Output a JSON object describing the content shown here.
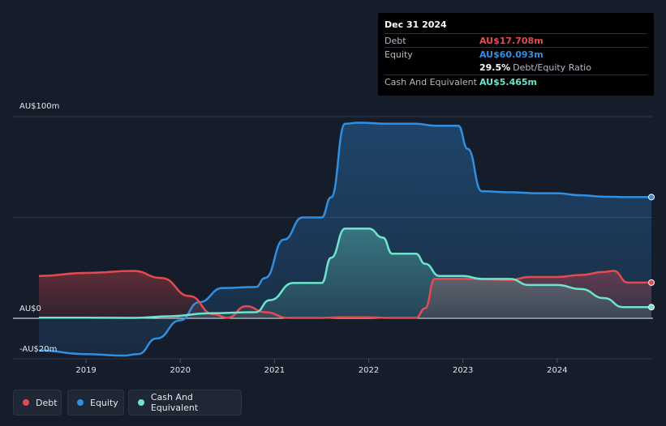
{
  "tooltip": {
    "date": "Dec 31 2024",
    "rows": [
      {
        "label": "Debt",
        "value": "AU$17.708m",
        "color": "#e64a4f"
      },
      {
        "label": "Equity",
        "value": "AU$60.093m",
        "color": "#2f8fe3"
      },
      {
        "label": "",
        "value": "29.5%",
        "extra": "Debt/Equity Ratio",
        "color": "#ffffff"
      },
      {
        "label": "Cash And Equivalent",
        "value": "AU$5.465m",
        "color": "#6ee3cd"
      }
    ]
  },
  "legend": [
    {
      "label": "Debt",
      "color": "#e64a4f"
    },
    {
      "label": "Equity",
      "color": "#2f8fe3"
    },
    {
      "label": "Cash And Equivalent",
      "color": "#6ee3cd"
    }
  ],
  "chart_data": {
    "type": "area",
    "y_tick_labels": [
      "AU$100m",
      "AU$0",
      "-AU$20m"
    ],
    "x_tick_labels": [
      "2019",
      "2020",
      "2021",
      "2022",
      "2023",
      "2024"
    ],
    "x_range": [
      2018.5,
      2025.0
    ],
    "ylim": [
      -20,
      100
    ],
    "series": [
      {
        "name": "Debt",
        "color": "#e64a4f",
        "points": [
          [
            2018.5,
            21
          ],
          [
            2019.0,
            22.5
          ],
          [
            2019.5,
            23.5
          ],
          [
            2019.8,
            20
          ],
          [
            2020.1,
            11
          ],
          [
            2020.35,
            2
          ],
          [
            2020.5,
            0.3
          ],
          [
            2020.7,
            6
          ],
          [
            2020.9,
            3
          ],
          [
            2021.15,
            0.2
          ],
          [
            2021.5,
            0.2
          ],
          [
            2021.7,
            0.5
          ],
          [
            2022.0,
            0.5
          ],
          [
            2022.2,
            0.2
          ],
          [
            2022.5,
            0.2
          ],
          [
            2022.6,
            5
          ],
          [
            2022.7,
            19.5
          ],
          [
            2023.0,
            19.5
          ],
          [
            2023.5,
            19
          ],
          [
            2023.7,
            20.5
          ],
          [
            2024.0,
            20.5
          ],
          [
            2024.25,
            21.5
          ],
          [
            2024.5,
            23
          ],
          [
            2024.6,
            23.5
          ],
          [
            2024.75,
            17.7
          ],
          [
            2025.0,
            17.7
          ]
        ]
      },
      {
        "name": "Equity",
        "color": "#2f8fe3",
        "points": [
          [
            2018.5,
            -16
          ],
          [
            2019.0,
            -17.8
          ],
          [
            2019.4,
            -18.5
          ],
          [
            2019.55,
            -17.8
          ],
          [
            2019.75,
            -10
          ],
          [
            2020.0,
            -1
          ],
          [
            2020.2,
            8
          ],
          [
            2020.45,
            15
          ],
          [
            2020.8,
            15.5
          ],
          [
            2020.9,
            20
          ],
          [
            2021.1,
            39
          ],
          [
            2021.3,
            50
          ],
          [
            2021.5,
            50
          ],
          [
            2021.6,
            60
          ],
          [
            2021.75,
            96.5
          ],
          [
            2021.9,
            97
          ],
          [
            2022.2,
            96.5
          ],
          [
            2022.5,
            96.5
          ],
          [
            2022.7,
            95.5
          ],
          [
            2022.95,
            95.5
          ],
          [
            2023.05,
            84
          ],
          [
            2023.2,
            63
          ],
          [
            2023.5,
            62.5
          ],
          [
            2023.8,
            62
          ],
          [
            2024.0,
            62
          ],
          [
            2024.25,
            61
          ],
          [
            2024.5,
            60.3
          ],
          [
            2024.75,
            60.1
          ],
          [
            2025.0,
            60.1
          ]
        ]
      },
      {
        "name": "Cash And Equivalent",
        "color": "#6ee3cd",
        "points": [
          [
            2018.5,
            0.3
          ],
          [
            2019.0,
            0.3
          ],
          [
            2019.5,
            0.2
          ],
          [
            2019.9,
            1
          ],
          [
            2020.3,
            2.5
          ],
          [
            2020.8,
            3
          ],
          [
            2020.95,
            9
          ],
          [
            2021.2,
            17.5
          ],
          [
            2021.5,
            17.5
          ],
          [
            2021.6,
            30
          ],
          [
            2021.75,
            44.5
          ],
          [
            2022.0,
            44.5
          ],
          [
            2022.15,
            40
          ],
          [
            2022.25,
            32
          ],
          [
            2022.5,
            32
          ],
          [
            2022.6,
            27
          ],
          [
            2022.75,
            21
          ],
          [
            2023.0,
            21
          ],
          [
            2023.2,
            19.5
          ],
          [
            2023.5,
            19.5
          ],
          [
            2023.7,
            16.5
          ],
          [
            2024.0,
            16.5
          ],
          [
            2024.25,
            14.5
          ],
          [
            2024.5,
            10
          ],
          [
            2024.7,
            5.5
          ],
          [
            2025.0,
            5.5
          ]
        ]
      }
    ]
  }
}
